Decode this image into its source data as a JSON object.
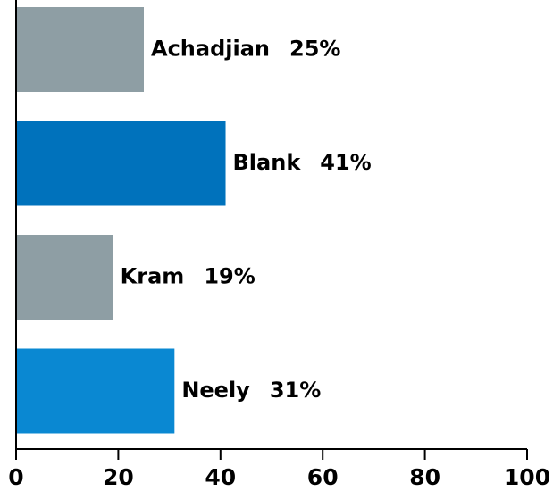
{
  "chart_data": {
    "type": "hbar",
    "categories": [
      "Achadjian",
      "Blank",
      "Kram",
      "Neely"
    ],
    "values": [
      25,
      41,
      19,
      31
    ],
    "value_labels": [
      "25%",
      "41%",
      "19%",
      "31%"
    ],
    "colors": [
      "#8e9ea4",
      "#0072bc",
      "#8e9ea4",
      "#0a88d2"
    ],
    "xlim": [
      0,
      100
    ],
    "xticks": [
      0,
      20,
      40,
      60,
      80,
      100
    ]
  }
}
